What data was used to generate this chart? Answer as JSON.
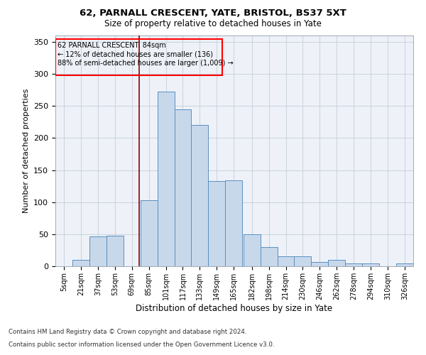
{
  "title1": "62, PARNALL CRESCENT, YATE, BRISTOL, BS37 5XT",
  "title2": "Size of property relative to detached houses in Yate",
  "xlabel": "Distribution of detached houses by size in Yate",
  "ylabel": "Number of detached properties",
  "annotation_line1": "62 PARNALL CRESCENT: 84sqm",
  "annotation_line2": "← 12% of detached houses are smaller (136)",
  "annotation_line3": "88% of semi-detached houses are larger (1,009) →",
  "footer1": "Contains HM Land Registry data © Crown copyright and database right 2024.",
  "footer2": "Contains public sector information licensed under the Open Government Licence v3.0.",
  "bins": [
    5,
    21,
    37,
    53,
    69,
    85,
    101,
    117,
    133,
    149,
    165,
    182,
    198,
    214,
    230,
    246,
    262,
    278,
    294,
    310,
    326
  ],
  "counts": [
    0,
    10,
    47,
    48,
    0,
    103,
    272,
    245,
    220,
    133,
    134,
    50,
    30,
    16,
    15,
    7,
    10,
    4,
    4,
    0,
    4
  ],
  "bar_color": "#c8d8eb",
  "bar_edge_color": "#5a8fc0",
  "property_value": 84,
  "vline_color": "#8b0000",
  "grid_color": "#ccd5e0",
  "background_color": "#eef2f8",
  "ylim": [
    0,
    360
  ],
  "yticks": [
    0,
    50,
    100,
    150,
    200,
    250,
    300,
    350
  ]
}
